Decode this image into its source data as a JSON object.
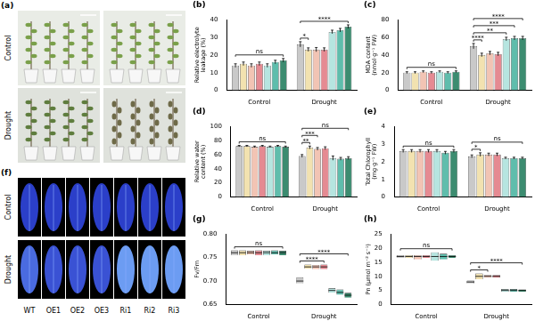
{
  "genotypes": [
    "WT",
    "OE1",
    "OE2",
    "OE3",
    "Ri1",
    "Ri2",
    "Ri3"
  ],
  "panel_a": {
    "label": "(a)",
    "rows": [
      "Control",
      "Drought"
    ]
  },
  "panel_f": {
    "label": "(f)",
    "rows": [
      "Control",
      "Drought"
    ]
  },
  "chart_data": [
    {
      "type": "bar",
      "title": "(b)",
      "y_label": "Relative electrolyte leakage (%)",
      "categories": [
        "Control",
        "Drought"
      ],
      "ylim": [
        0,
        40
      ],
      "yticks": [
        0,
        10,
        20,
        30,
        40
      ],
      "grid": false,
      "series": [
        {
          "color": "#c9c9c9",
          "values": [
            14,
            26
          ],
          "errors": [
            1,
            1.5
          ]
        },
        {
          "color": "#f2e2b0",
          "values": [
            15,
            23
          ],
          "errors": [
            1,
            1
          ]
        },
        {
          "color": "#f2c4b4",
          "values": [
            14,
            23
          ],
          "errors": [
            1,
            1.2
          ]
        },
        {
          "color": "#e58a92",
          "values": [
            15,
            23
          ],
          "errors": [
            1,
            1
          ]
        },
        {
          "color": "#b6e5e0",
          "values": [
            14,
            33
          ],
          "errors": [
            1,
            1
          ]
        },
        {
          "color": "#5fbdac",
          "values": [
            16,
            34
          ],
          "errors": [
            1,
            1
          ]
        },
        {
          "color": "#3c8c70",
          "values": [
            17,
            36
          ],
          "errors": [
            1,
            1
          ]
        }
      ],
      "annotations": [
        {
          "text": "ns",
          "category": "Control",
          "from": "WT",
          "to": "Ri3"
        },
        {
          "text": "*",
          "category": "Drought",
          "from": "WT",
          "to": "OE1"
        },
        {
          "text": "****",
          "category": "Drought",
          "from": "WT",
          "to": "Ri3"
        }
      ]
    },
    {
      "type": "bar",
      "title": "(c)",
      "y_label": "MDA content (nmol·g⁻¹ FW)",
      "categories": [
        "Control",
        "Drought"
      ],
      "ylim": [
        0,
        80
      ],
      "yticks": [
        0,
        20,
        40,
        60,
        80
      ],
      "grid": false,
      "series": [
        {
          "color": "#c9c9c9",
          "values": [
            20,
            50
          ],
          "errors": [
            1,
            3
          ]
        },
        {
          "color": "#f2e2b0",
          "values": [
            20,
            40
          ],
          "errors": [
            1,
            2
          ]
        },
        {
          "color": "#f2c4b4",
          "values": [
            21,
            42
          ],
          "errors": [
            1,
            2
          ]
        },
        {
          "color": "#e58a92",
          "values": [
            20,
            41
          ],
          "errors": [
            1,
            2
          ]
        },
        {
          "color": "#b6e5e0",
          "values": [
            21,
            58
          ],
          "errors": [
            1,
            2
          ]
        },
        {
          "color": "#5fbdac",
          "values": [
            20,
            59
          ],
          "errors": [
            1,
            2
          ]
        },
        {
          "color": "#3c8c70",
          "values": [
            21,
            59
          ],
          "errors": [
            1,
            2
          ]
        }
      ],
      "annotations": [
        {
          "text": "ns",
          "category": "Control",
          "from": "WT",
          "to": "Ri3"
        },
        {
          "text": "****",
          "category": "Drought",
          "from": "WT",
          "to": "OE1"
        },
        {
          "text": "**",
          "category": "Drought",
          "from": "WT",
          "to": "Ri1"
        },
        {
          "text": "***",
          "category": "Drought",
          "from": "WT",
          "to": "Ri2"
        },
        {
          "text": "****",
          "category": "Drought",
          "from": "WT",
          "to": "Ri3"
        }
      ]
    },
    {
      "type": "bar",
      "title": "(d)",
      "y_label": "Relative water content (%)",
      "categories": [
        "Control",
        "Drought"
      ],
      "ylim": [
        0,
        100
      ],
      "yticks": [
        0,
        20,
        40,
        60,
        80,
        100
      ],
      "grid": false,
      "series": [
        {
          "color": "#c9c9c9",
          "values": [
            72,
            58
          ],
          "errors": [
            1,
            2
          ]
        },
        {
          "color": "#f2e2b0",
          "values": [
            72,
            70
          ],
          "errors": [
            1,
            2
          ]
        },
        {
          "color": "#f2c4b4",
          "values": [
            71,
            68
          ],
          "errors": [
            1,
            2
          ]
        },
        {
          "color": "#e58a92",
          "values": [
            72,
            69
          ],
          "errors": [
            1,
            2
          ]
        },
        {
          "color": "#b6e5e0",
          "values": [
            71,
            55
          ],
          "errors": [
            1,
            3
          ]
        },
        {
          "color": "#5fbdac",
          "values": [
            72,
            54
          ],
          "errors": [
            1,
            2
          ]
        },
        {
          "color": "#3c8c70",
          "values": [
            71,
            55
          ],
          "errors": [
            1,
            2
          ]
        }
      ],
      "annotations": [
        {
          "text": "ns",
          "category": "Control",
          "from": "WT",
          "to": "Ri3"
        },
        {
          "text": "**",
          "category": "Drought",
          "from": "WT",
          "to": "OE1"
        },
        {
          "text": "***",
          "category": "Drought",
          "from": "WT",
          "to": "OE2"
        },
        {
          "text": "ns",
          "category": "Drought",
          "from": "WT",
          "to": "Ri3"
        }
      ]
    },
    {
      "type": "bar",
      "title": "(e)",
      "y_label": "Total Chlorophyll (mg·g⁻¹ FW)",
      "categories": [
        "Control",
        "Drought"
      ],
      "ylim": [
        0,
        4
      ],
      "yticks": [
        0,
        1,
        2,
        3,
        4
      ],
      "grid": false,
      "series": [
        {
          "color": "#c9c9c9",
          "values": [
            2.6,
            2.3
          ],
          "errors": [
            0.08,
            0.08
          ]
        },
        {
          "color": "#f2e2b0",
          "values": [
            2.6,
            2.4
          ],
          "errors": [
            0.08,
            0.1
          ]
        },
        {
          "color": "#f2c4b4",
          "values": [
            2.6,
            2.4
          ],
          "errors": [
            0.08,
            0.08
          ]
        },
        {
          "color": "#e58a92",
          "values": [
            2.6,
            2.4
          ],
          "errors": [
            0.08,
            0.08
          ]
        },
        {
          "color": "#b6e5e0",
          "values": [
            2.6,
            2.2
          ],
          "errors": [
            0.08,
            0.05
          ]
        },
        {
          "color": "#5fbdac",
          "values": [
            2.5,
            2.2
          ],
          "errors": [
            0.08,
            0.05
          ]
        },
        {
          "color": "#3c8c70",
          "values": [
            2.6,
            2.2
          ],
          "errors": [
            0.08,
            0.05
          ]
        }
      ],
      "annotations": [
        {
          "text": "ns",
          "category": "Control",
          "from": "WT",
          "to": "Ri3"
        },
        {
          "text": "*",
          "category": "Drought",
          "from": "WT",
          "to": "OE1"
        },
        {
          "text": "ns",
          "category": "Drought",
          "from": "WT",
          "to": "Ri3"
        }
      ]
    },
    {
      "type": "box",
      "title": "(g)",
      "y_label": "Fv/Fm",
      "categories": [
        "Control",
        "Drought"
      ],
      "ylim": [
        0.65,
        0.8
      ],
      "yticks": [
        {
          "value": 0.65,
          "label": "0.65"
        },
        {
          "value": 0.7,
          "label": "0.70"
        },
        {
          "value": 0.75,
          "label": "0.75"
        },
        {
          "value": 0.8,
          "label": "0.80"
        }
      ],
      "grid": false,
      "series": [
        {
          "color": "#c9c9c9",
          "values": [
            0.76,
            0.7
          ],
          "ranges": [
            [
              0.755,
              0.765
            ],
            [
              0.695,
              0.708
            ]
          ]
        },
        {
          "color": "#f2e2b0",
          "values": [
            0.76,
            0.73
          ],
          "ranges": [
            [
              0.755,
              0.765
            ],
            [
              0.726,
              0.735
            ]
          ]
        },
        {
          "color": "#f2c4b4",
          "values": [
            0.76,
            0.73
          ],
          "ranges": [
            [
              0.756,
              0.764
            ],
            [
              0.725,
              0.734
            ]
          ]
        },
        {
          "color": "#e58a92",
          "values": [
            0.76,
            0.73
          ],
          "ranges": [
            [
              0.755,
              0.765
            ],
            [
              0.725,
              0.735
            ]
          ]
        },
        {
          "color": "#b6e5e0",
          "values": [
            0.76,
            0.68
          ],
          "ranges": [
            [
              0.755,
              0.764
            ],
            [
              0.675,
              0.685
            ]
          ]
        },
        {
          "color": "#5fbdac",
          "values": [
            0.76,
            0.676
          ],
          "ranges": [
            [
              0.756,
              0.765
            ],
            [
              0.671,
              0.682
            ]
          ]
        },
        {
          "color": "#3c8c70",
          "values": [
            0.76,
            0.67
          ],
          "ranges": [
            [
              0.755,
              0.764
            ],
            [
              0.665,
              0.675
            ]
          ]
        }
      ],
      "annotations": [
        {
          "text": "ns",
          "category": "Control",
          "from": "WT",
          "to": "Ri3"
        },
        {
          "text": "****",
          "category": "Drought",
          "from": "WT",
          "to": "OE3"
        },
        {
          "text": "****",
          "category": "Drought",
          "from": "WT",
          "to": "Ri3"
        }
      ]
    },
    {
      "type": "box",
      "title": "(h)",
      "y_label": "Pn (μmol m⁻² s⁻¹)",
      "categories": [
        "Control",
        "Drought"
      ],
      "ylim": [
        0,
        25
      ],
      "yticks": [
        0,
        5,
        10,
        15,
        20,
        25
      ],
      "grid": false,
      "series": [
        {
          "color": "#c9c9c9",
          "values": [
            17,
            8
          ],
          "ranges": [
            [
              16.5,
              17.5
            ],
            [
              7.5,
              8.5
            ]
          ]
        },
        {
          "color": "#f2e2b0",
          "values": [
            17,
            10
          ],
          "ranges": [
            [
              16.5,
              17.5
            ],
            [
              9,
              11
            ]
          ]
        },
        {
          "color": "#f2c4b4",
          "values": [
            17,
            10
          ],
          "ranges": [
            [
              16,
              17.5
            ],
            [
              9.5,
              10.5
            ]
          ]
        },
        {
          "color": "#e58a92",
          "values": [
            17,
            10
          ],
          "ranges": [
            [
              16.5,
              17.5
            ],
            [
              9.5,
              10.5
            ]
          ]
        },
        {
          "color": "#b6e5e0",
          "values": [
            17,
            5
          ],
          "ranges": [
            [
              15.5,
              18.5
            ],
            [
              4.5,
              5.5
            ]
          ]
        },
        {
          "color": "#5fbdac",
          "values": [
            17,
            5
          ],
          "ranges": [
            [
              16,
              18
            ],
            [
              4.5,
              5.5
            ]
          ]
        },
        {
          "color": "#3c8c70",
          "values": [
            17,
            5
          ],
          "ranges": [
            [
              16.5,
              17.5
            ],
            [
              4.6,
              5.4
            ]
          ]
        }
      ],
      "annotations": [
        {
          "text": "ns",
          "category": "Control",
          "from": "WT",
          "to": "Ri3"
        },
        {
          "text": "*",
          "category": "Drought",
          "from": "WT",
          "to": "OE2"
        },
        {
          "text": "****",
          "category": "Drought",
          "from": "WT",
          "to": "Ri3"
        }
      ]
    }
  ]
}
